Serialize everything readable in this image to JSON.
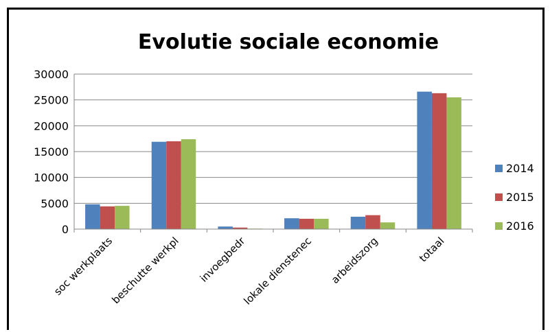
{
  "chart_data": {
    "type": "bar",
    "title": "Evolutie sociale economie",
    "categories": [
      "soc werkplaats",
      "beschutte werkpl",
      "invoegbedr",
      "lokale dienstenec",
      "arbeidszorg",
      "totaal"
    ],
    "series": [
      {
        "name": "2014",
        "color": "#4f81bd",
        "values": [
          4800,
          16900,
          500,
          2100,
          2400,
          26600
        ]
      },
      {
        "name": "2015",
        "color": "#c0504d",
        "values": [
          4400,
          17000,
          300,
          2000,
          2700,
          26300
        ]
      },
      {
        "name": "2016",
        "color": "#9bbb59",
        "values": [
          4500,
          17400,
          100,
          2000,
          1300,
          25500
        ]
      }
    ],
    "ylim": [
      0,
      30000
    ],
    "yticks": [
      0,
      5000,
      10000,
      15000,
      20000,
      25000,
      30000
    ],
    "grid": true,
    "legend_position": "right"
  }
}
